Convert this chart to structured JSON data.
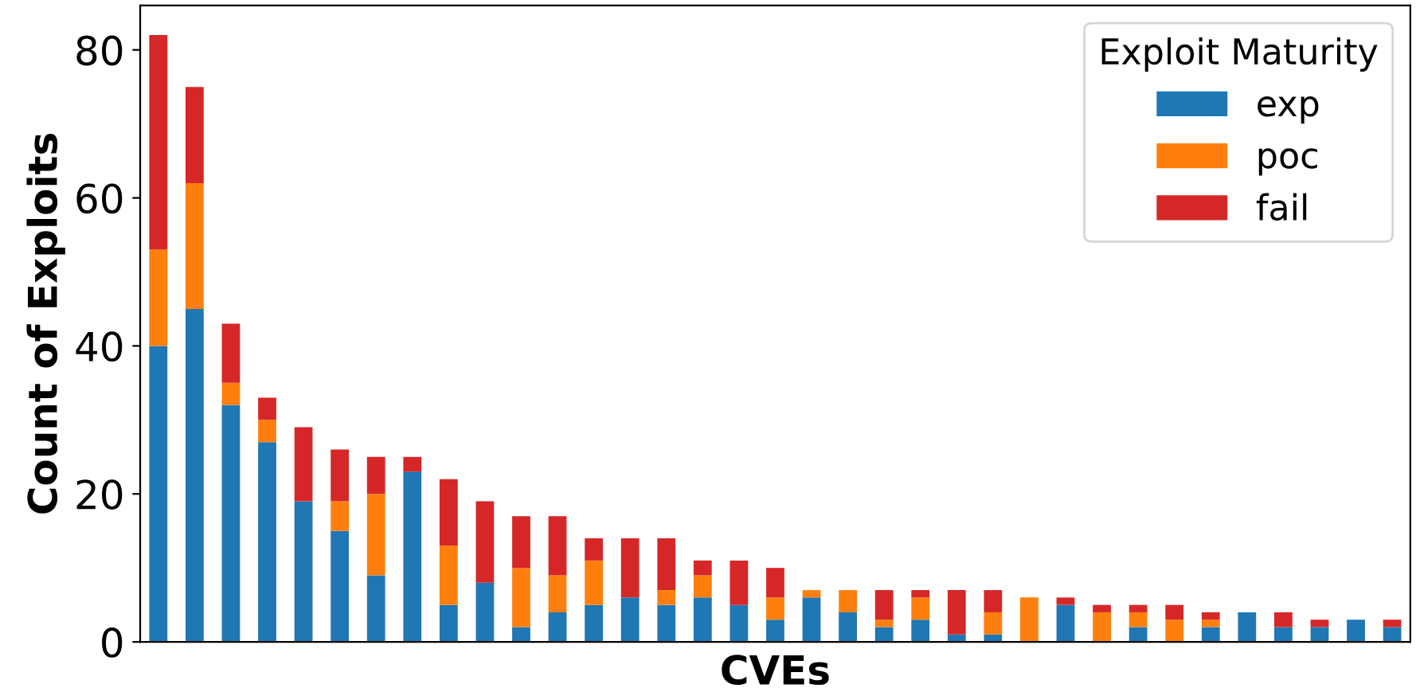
{
  "chart_data": {
    "type": "bar",
    "stacked": true,
    "xlabel": "CVEs",
    "ylabel": "Count of Exploits",
    "legend_title": "Exploit Maturity",
    "legend": "top right",
    "categories": [
      null,
      null,
      null,
      null,
      null,
      null,
      null,
      null,
      null,
      null,
      null,
      null,
      null,
      null,
      null,
      null,
      null,
      null,
      null,
      null,
      null,
      null,
      null,
      null,
      null,
      null,
      null,
      null,
      null,
      null,
      null,
      null,
      null,
      null,
      null
    ],
    "series": [
      {
        "name": "exp",
        "color": "#1f77b4",
        "values": [
          40,
          45,
          32,
          27,
          19,
          15,
          9,
          23,
          5,
          8,
          2,
          4,
          5,
          6,
          5,
          6,
          5,
          3,
          6,
          4,
          2,
          3,
          1,
          1,
          0,
          5,
          0,
          2,
          0,
          2,
          4,
          2,
          2,
          3,
          2
        ]
      },
      {
        "name": "poc",
        "color": "#ff7f0e",
        "values": [
          13,
          17,
          3,
          3,
          0,
          4,
          11,
          0,
          8,
          0,
          8,
          5,
          6,
          0,
          2,
          3,
          0,
          3,
          1,
          3,
          1,
          3,
          0,
          3,
          6,
          0,
          4,
          2,
          3,
          1,
          0,
          0,
          0,
          0,
          0
        ]
      },
      {
        "name": "fail",
        "color": "#d62728",
        "values": [
          29,
          13,
          8,
          3,
          10,
          7,
          5,
          2,
          9,
          11,
          7,
          8,
          3,
          8,
          7,
          2,
          6,
          4,
          0,
          0,
          4,
          1,
          6,
          3,
          0,
          1,
          1,
          1,
          2,
          1,
          0,
          2,
          1,
          0,
          1
        ]
      }
    ],
    "ylim": [
      0,
      86
    ],
    "yticks": [
      0,
      20,
      40,
      60,
      80
    ],
    "grid": false
  }
}
